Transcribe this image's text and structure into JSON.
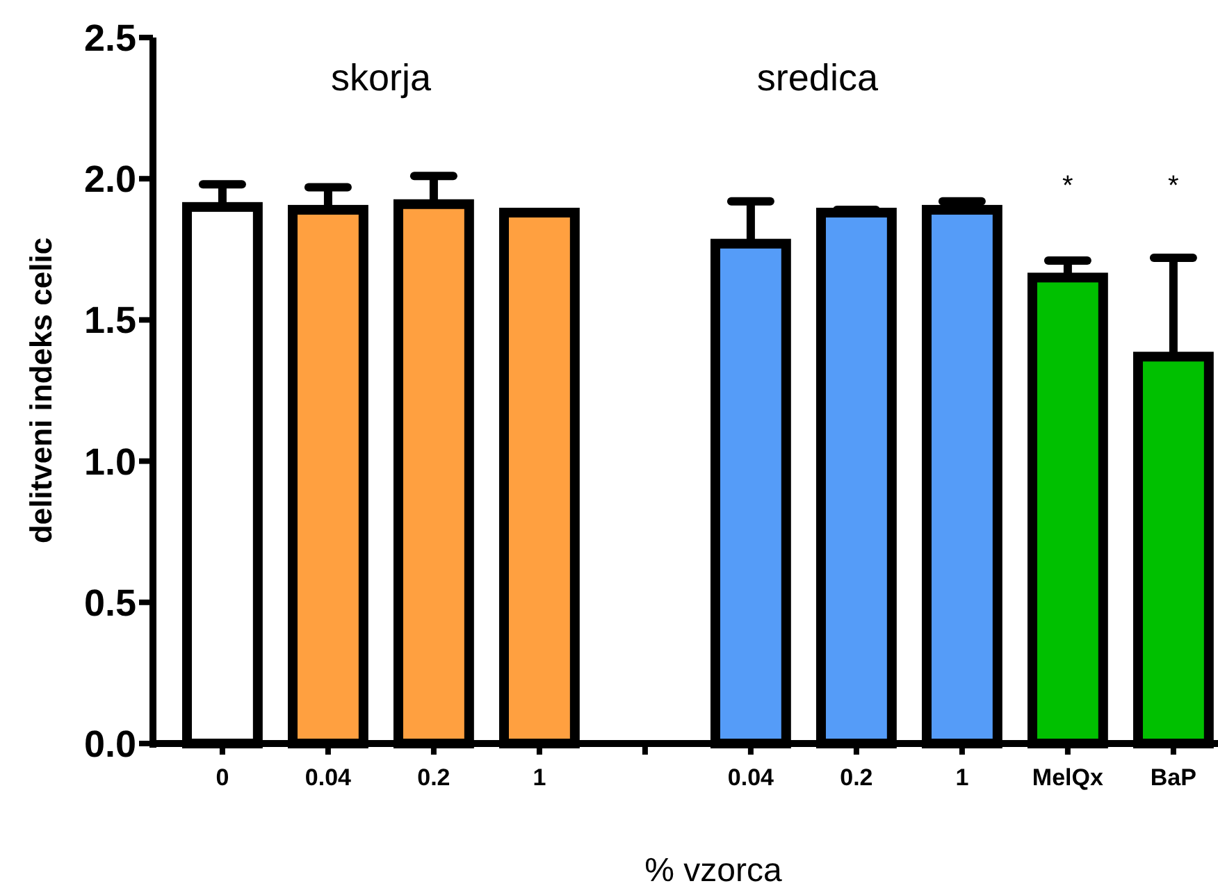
{
  "chart_data": {
    "type": "bar",
    "ylabel": "delitveni indeks celic",
    "xlabel": "% vzorca",
    "categories": [
      "0",
      "0.04",
      "0.2",
      "1",
      null,
      "0.04",
      "0.2",
      "1",
      "MelQx",
      "BaP"
    ],
    "values": [
      1.9,
      1.89,
      1.91,
      1.88,
      null,
      1.77,
      1.88,
      1.89,
      1.65,
      1.37
    ],
    "colors": [
      "#ffffff",
      "#ffa040",
      "#ffa040",
      "#ffa040",
      null,
      "#559cf8",
      "#559cf8",
      "#559cf8",
      "#00c000",
      "#00c000"
    ],
    "errors": [
      [
        1.9,
        1.98
      ],
      [
        1.89,
        1.97
      ],
      [
        1.91,
        2.01
      ],
      null,
      null,
      [
        1.77,
        1.92
      ],
      [
        1.88,
        1.89
      ],
      [
        1.89,
        1.92
      ],
      [
        1.65,
        1.71
      ],
      [
        1.37,
        1.72
      ]
    ],
    "ylim": [
      0,
      2.5
    ],
    "yticks": [
      {
        "value": 0,
        "label": "0.0"
      },
      {
        "value": 0.5,
        "label": "0.5"
      },
      {
        "value": 1,
        "label": "1.0"
      },
      {
        "value": 1.5,
        "label": "1.5"
      },
      {
        "value": 2,
        "label": "2.0"
      },
      {
        "value": 2.5,
        "label": "2.5"
      }
    ],
    "annotations": [
      "skorja",
      "sredica",
      "*",
      "*"
    ]
  }
}
